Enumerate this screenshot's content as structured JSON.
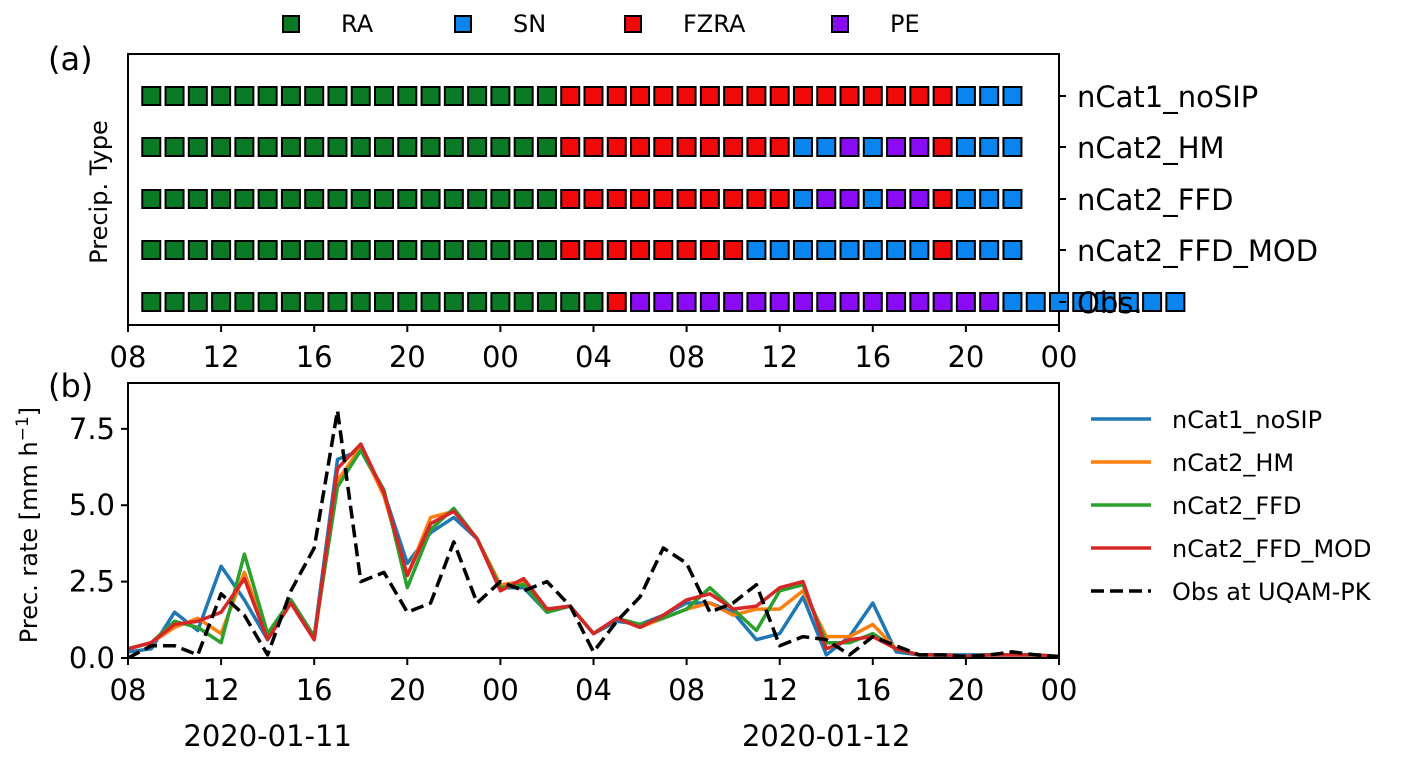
{
  "legend_top": [
    {
      "key": "RA",
      "label": "RA",
      "color": "#0b7a24"
    },
    {
      "key": "SN",
      "label": "SN",
      "color": "#0a84ee"
    },
    {
      "key": "FZRA",
      "label": "FZRA",
      "color": "#f00a0a"
    },
    {
      "key": "PE",
      "label": "PE",
      "color": "#8a0bf5"
    }
  ],
  "panel_a_label": "(a)",
  "panel_b_label": "(b)",
  "x_ticks": [
    "08",
    "12",
    "16",
    "20",
    "00",
    "04",
    "08",
    "12",
    "16",
    "20",
    "00"
  ],
  "date_labels": [
    {
      "hour": 6,
      "text": "2020-01-11"
    },
    {
      "hour": 30,
      "text": "2020-01-12"
    }
  ],
  "chart_data": [
    {
      "type": "scatter",
      "title": "",
      "ylabel": "Precip. Type",
      "x_range_hours": [
        0,
        40
      ],
      "x_start": "2020-01-11 08:00",
      "rows": [
        {
          "name": "nCat1_noSIP",
          "types": [
            "RA",
            "RA",
            "RA",
            "RA",
            "RA",
            "RA",
            "RA",
            "RA",
            "RA",
            "RA",
            "RA",
            "RA",
            "RA",
            "RA",
            "RA",
            "RA",
            "RA",
            "RA",
            "FZRA",
            "FZRA",
            "FZRA",
            "FZRA",
            "FZRA",
            "FZRA",
            "FZRA",
            "FZRA",
            "FZRA",
            "FZRA",
            "FZRA",
            "FZRA",
            "FZRA",
            "FZRA",
            "FZRA",
            "FZRA",
            "FZRA",
            "SN",
            "SN",
            "SN"
          ]
        },
        {
          "name": "nCat2_HM",
          "types": [
            "RA",
            "RA",
            "RA",
            "RA",
            "RA",
            "RA",
            "RA",
            "RA",
            "RA",
            "RA",
            "RA",
            "RA",
            "RA",
            "RA",
            "RA",
            "RA",
            "RA",
            "RA",
            "FZRA",
            "FZRA",
            "FZRA",
            "FZRA",
            "FZRA",
            "FZRA",
            "FZRA",
            "FZRA",
            "FZRA",
            "FZRA",
            "SN",
            "SN",
            "PE",
            "SN",
            "PE",
            "PE",
            "FZRA",
            "SN",
            "SN",
            "SN"
          ]
        },
        {
          "name": "nCat2_FFD",
          "types": [
            "RA",
            "RA",
            "RA",
            "RA",
            "RA",
            "RA",
            "RA",
            "RA",
            "RA",
            "RA",
            "RA",
            "RA",
            "RA",
            "RA",
            "RA",
            "RA",
            "RA",
            "RA",
            "FZRA",
            "FZRA",
            "FZRA",
            "FZRA",
            "FZRA",
            "FZRA",
            "FZRA",
            "FZRA",
            "FZRA",
            "FZRA",
            "SN",
            "PE",
            "PE",
            "SN",
            "PE",
            "PE",
            "FZRA",
            "SN",
            "SN",
            "SN"
          ]
        },
        {
          "name": "nCat2_FFD_MOD",
          "types": [
            "RA",
            "RA",
            "RA",
            "RA",
            "RA",
            "RA",
            "RA",
            "RA",
            "RA",
            "RA",
            "RA",
            "RA",
            "RA",
            "RA",
            "RA",
            "RA",
            "RA",
            "RA",
            "FZRA",
            "FZRA",
            "FZRA",
            "FZRA",
            "FZRA",
            "FZRA",
            "FZRA",
            "FZRA",
            "SN",
            "SN",
            "SN",
            "SN",
            "SN",
            "SN",
            "SN",
            "SN",
            "FZRA",
            "SN",
            "SN",
            "SN"
          ]
        },
        {
          "name": "Obs.",
          "types": [
            "RA",
            "RA",
            "RA",
            "RA",
            "RA",
            "RA",
            "RA",
            "RA",
            "RA",
            "RA",
            "RA",
            "RA",
            "RA",
            "RA",
            "RA",
            "RA",
            "RA",
            "RA",
            "RA",
            "RA",
            "FZRA",
            "PE",
            "PE",
            "PE",
            "PE",
            "PE",
            "PE",
            "PE",
            "PE",
            "PE",
            "PE",
            "PE",
            "PE",
            "PE",
            "PE",
            "PE",
            "PE",
            "SN",
            "SN",
            "SN",
            "SN",
            "SN",
            "SN",
            "SN",
            "SN"
          ]
        }
      ]
    },
    {
      "type": "line",
      "title": "",
      "xlabel": "",
      "ylabel": "Prec. rate [mm h",
      "ylabel_sup": "−1",
      "ylabel_end": "]",
      "x_range_hours": [
        0,
        40
      ],
      "x_start": "2020-01-11 08:00",
      "ylim": [
        0,
        9
      ],
      "y_ticks": [
        0.0,
        2.5,
        5.0,
        7.5
      ],
      "y_tick_labels": [
        "0.0",
        "2.5",
        "5.0",
        "7.5"
      ],
      "x": [
        0,
        1,
        2,
        3,
        4,
        5,
        6,
        7,
        8,
        9,
        10,
        11,
        12,
        13,
        14,
        15,
        16,
        17,
        18,
        19,
        20,
        21,
        22,
        23,
        24,
        25,
        26,
        27,
        28,
        29,
        30,
        31,
        32,
        33,
        34,
        35,
        36,
        37,
        38,
        39,
        40
      ],
      "series": [
        {
          "name": "nCat1_noSIP",
          "color": "#1f77b4",
          "dashed": false,
          "values": [
            0.2,
            0.3,
            1.5,
            0.9,
            3.0,
            1.9,
            0.6,
            1.9,
            0.7,
            6.5,
            6.8,
            5.4,
            3.1,
            4.1,
            4.6,
            3.9,
            2.3,
            2.3,
            1.5,
            1.7,
            0.8,
            1.2,
            1.1,
            1.4,
            1.8,
            1.8,
            1.5,
            0.6,
            0.8,
            2.0,
            0.1,
            0.7,
            1.8,
            0.2,
            0.1,
            0.1,
            0.1,
            0.1,
            0.1,
            0.1,
            0.05
          ]
        },
        {
          "name": "nCat2_HM",
          "color": "#ff7f0e",
          "dashed": false,
          "values": [
            0.3,
            0.5,
            1.0,
            1.3,
            0.8,
            2.8,
            0.7,
            1.8,
            0.6,
            5.8,
            6.9,
            5.3,
            2.7,
            4.6,
            4.8,
            3.9,
            2.4,
            2.5,
            1.6,
            1.7,
            0.8,
            1.3,
            1.0,
            1.3,
            1.6,
            1.8,
            1.4,
            1.6,
            1.6,
            2.2,
            0.7,
            0.7,
            1.1,
            0.3,
            0.1,
            0.1,
            0.05,
            0.1,
            0.1,
            0.1,
            0.05
          ]
        },
        {
          "name": "nCat2_FFD",
          "color": "#2ca02c",
          "dashed": false,
          "values": [
            0.3,
            0.5,
            1.2,
            1.0,
            0.5,
            3.4,
            0.8,
            1.9,
            0.7,
            5.6,
            6.8,
            5.5,
            2.3,
            4.2,
            4.9,
            3.9,
            2.3,
            2.4,
            1.5,
            1.7,
            0.8,
            1.3,
            1.1,
            1.3,
            1.6,
            2.3,
            1.6,
            0.9,
            2.2,
            2.4,
            0.5,
            0.5,
            0.8,
            0.3,
            0.1,
            0.1,
            0.05,
            0.1,
            0.1,
            0.1,
            0.05
          ]
        },
        {
          "name": "nCat2_FFD_MOD",
          "color": "#d62728",
          "dashed": false,
          "values": [
            0.3,
            0.5,
            1.1,
            1.2,
            1.5,
            2.6,
            0.6,
            1.8,
            0.6,
            6.2,
            7.0,
            5.4,
            2.7,
            4.4,
            4.8,
            3.9,
            2.2,
            2.6,
            1.6,
            1.7,
            0.8,
            1.3,
            1.0,
            1.4,
            1.9,
            2.1,
            1.6,
            1.7,
            2.3,
            2.5,
            0.3,
            0.6,
            0.7,
            0.3,
            0.1,
            0.1,
            0.05,
            0.1,
            0.1,
            0.1,
            0.05
          ]
        },
        {
          "name": "Obs at UQAM-PK",
          "color": "#000000",
          "dashed": true,
          "values": [
            0.0,
            0.4,
            0.4,
            0.1,
            2.1,
            1.4,
            0.1,
            2.2,
            3.6,
            8.1,
            2.5,
            2.8,
            1.5,
            1.8,
            3.8,
            1.8,
            2.5,
            2.2,
            2.5,
            1.7,
            0.2,
            1.2,
            2.0,
            3.6,
            3.1,
            1.5,
            1.8,
            2.4,
            0.4,
            0.7,
            0.6,
            0.1,
            0.7,
            0.4,
            0.1,
            0.1,
            0.05,
            0.1,
            0.2,
            0.1,
            0.05
          ]
        }
      ]
    }
  ]
}
